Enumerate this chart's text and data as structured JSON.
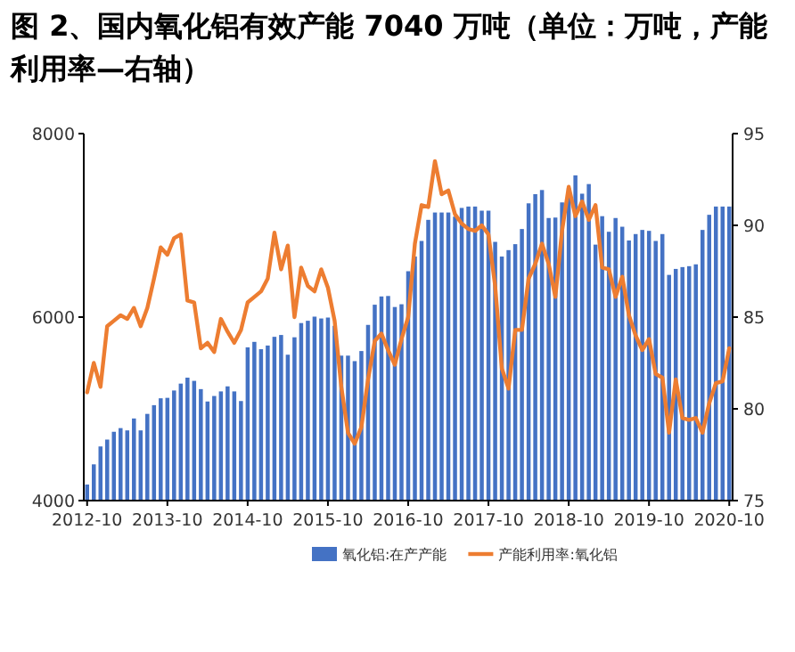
{
  "chart_data": {
    "type": "bar",
    "title": "图 2、国内氧化铝有效产能 7040 万吨（单位：万吨，产能利用率—右轴）",
    "categories": [
      "2012-10",
      null,
      null,
      null,
      null,
      null,
      null,
      null,
      null,
      null,
      null,
      null,
      "2013-10",
      null,
      null,
      null,
      null,
      null,
      null,
      null,
      null,
      null,
      null,
      null,
      "2014-10",
      null,
      null,
      null,
      null,
      null,
      null,
      null,
      null,
      null,
      null,
      null,
      "2015-10",
      null,
      null,
      null,
      null,
      null,
      null,
      null,
      null,
      null,
      null,
      null,
      "2016-10",
      null,
      null,
      null,
      null,
      null,
      null,
      null,
      null,
      null,
      null,
      null,
      "2017-10",
      null,
      null,
      null,
      null,
      null,
      null,
      null,
      null,
      null,
      null,
      null,
      "2018-10",
      null,
      null,
      null,
      null,
      null,
      null,
      null,
      null,
      null,
      null,
      null,
      "2019-10",
      null,
      null,
      null,
      null,
      null,
      null,
      null,
      null,
      null,
      null,
      null,
      "2020-10"
    ],
    "series": [
      {
        "name": "氧化铝:在产产能",
        "color": "#4472c4",
        "values": [
          4175,
          4395,
          4590,
          4665,
          4750,
          4790,
          4765,
          4895,
          4765,
          4945,
          5040,
          5115,
          5120,
          5200,
          5275,
          5340,
          5305,
          5215,
          5080,
          5140,
          5190,
          5245,
          5190,
          5085,
          5670,
          5730,
          5650,
          5690,
          5785,
          5805,
          5590,
          5780,
          5935,
          5960,
          6005,
          5985,
          5995,
          5905,
          5580,
          5580,
          5520,
          5630,
          5915,
          6135,
          6225,
          6230,
          6110,
          6140,
          6500,
          6660,
          6830,
          7060,
          7140,
          7140,
          7140,
          7095,
          7190,
          7205,
          7205,
          7160,
          7160,
          6820,
          6660,
          6730,
          6795,
          6960,
          7240,
          7340,
          7385,
          7080,
          7085,
          7250,
          7405,
          7545,
          7345,
          7450,
          6790,
          7100,
          6930,
          7080,
          6985,
          6835,
          6905,
          6950,
          6940,
          6830,
          6905,
          6460,
          6525,
          6545,
          6555,
          6575,
          6950,
          7115,
          7205,
          7205,
          7205
        ]
      },
      {
        "name": "产能利用率:氧化铝",
        "type": "line",
        "axis": "y2",
        "color": "#ed7d31",
        "values": [
          80.9,
          82.5,
          81.2,
          84.5,
          84.8,
          85.1,
          84.9,
          85.5,
          84.5,
          85.5,
          87.1,
          88.8,
          88.4,
          89.3,
          89.5,
          85.9,
          85.8,
          83.3,
          83.6,
          83.1,
          84.9,
          84.2,
          83.6,
          84.3,
          85.8,
          86.1,
          86.4,
          87.1,
          89.6,
          87.6,
          88.9,
          85.0,
          87.7,
          86.7,
          86.4,
          87.6,
          86.6,
          84.8,
          81.2,
          78.7,
          78.1,
          79.0,
          81.6,
          83.7,
          84.1,
          83.2,
          82.4,
          83.8,
          85.0,
          89.0,
          91.1,
          91.0,
          93.5,
          91.7,
          91.9,
          90.6,
          90.1,
          89.8,
          89.7,
          90.0,
          89.5,
          86.7,
          82.2,
          81.1,
          84.3,
          84.3,
          87.1,
          87.9,
          89.0,
          87.9,
          86.1,
          89.7,
          92.1,
          90.5,
          91.3,
          90.3,
          91.1,
          87.7,
          87.6,
          86.1,
          87.2,
          85.1,
          84.0,
          83.2,
          83.8,
          81.9,
          81.7,
          78.7,
          81.6,
          79.5,
          79.4,
          79.5,
          78.7,
          80.3,
          81.4,
          81.5,
          83.3
        ]
      }
    ],
    "ylim": [
      4000,
      8000
    ],
    "yticks": [
      4000,
      6000,
      8000
    ],
    "y2lim": [
      75,
      95
    ],
    "y2ticks": [
      75,
      80,
      85,
      90,
      95
    ],
    "legend": "bottom"
  }
}
